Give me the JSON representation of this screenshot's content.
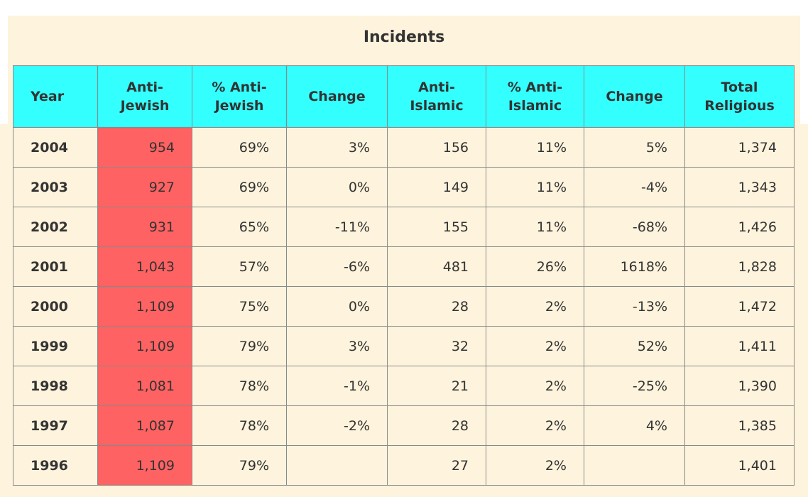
{
  "table": {
    "caption": "Incidents",
    "colors": {
      "header_bg": "#33ffff",
      "highlight_bg": "#ff6262",
      "body_bg": "#fef3dc"
    },
    "columns": [
      [
        "Anti-",
        "Jewish"
      ],
      [
        "% Anti-",
        "Jewish"
      ],
      [
        "Change"
      ],
      [
        "Anti-",
        "Islamic"
      ],
      [
        "% Anti-",
        "Islamic"
      ],
      [
        "Change"
      ],
      [
        "Total",
        "Religious"
      ]
    ],
    "year_label": "Year",
    "rows": [
      {
        "year": "2004",
        "anti_jewish": "954",
        "pct_anti_jewish": "69%",
        "change_jewish": "3%",
        "anti_islamic": "156",
        "pct_anti_islamic": "11%",
        "change_islamic": "5%",
        "total_religious": "1,374"
      },
      {
        "year": "2003",
        "anti_jewish": "927",
        "pct_anti_jewish": "69%",
        "change_jewish": "0%",
        "anti_islamic": "149",
        "pct_anti_islamic": "11%",
        "change_islamic": "-4%",
        "total_religious": "1,343"
      },
      {
        "year": "2002",
        "anti_jewish": "931",
        "pct_anti_jewish": "65%",
        "change_jewish": "-11%",
        "anti_islamic": "155",
        "pct_anti_islamic": "11%",
        "change_islamic": "-68%",
        "total_religious": "1,426"
      },
      {
        "year": "2001",
        "anti_jewish": "1,043",
        "pct_anti_jewish": "57%",
        "change_jewish": "-6%",
        "anti_islamic": "481",
        "pct_anti_islamic": "26%",
        "change_islamic": "1618%",
        "total_religious": "1,828"
      },
      {
        "year": "2000",
        "anti_jewish": "1,109",
        "pct_anti_jewish": "75%",
        "change_jewish": "0%",
        "anti_islamic": "28",
        "pct_anti_islamic": "2%",
        "change_islamic": "-13%",
        "total_religious": "1,472"
      },
      {
        "year": "1999",
        "anti_jewish": "1,109",
        "pct_anti_jewish": "79%",
        "change_jewish": "3%",
        "anti_islamic": "32",
        "pct_anti_islamic": "2%",
        "change_islamic": "52%",
        "total_religious": "1,411"
      },
      {
        "year": "1998",
        "anti_jewish": "1,081",
        "pct_anti_jewish": "78%",
        "change_jewish": "-1%",
        "anti_islamic": "21",
        "pct_anti_islamic": "2%",
        "change_islamic": "-25%",
        "total_religious": "1,390"
      },
      {
        "year": "1997",
        "anti_jewish": "1,087",
        "pct_anti_jewish": "78%",
        "change_jewish": "-2%",
        "anti_islamic": "28",
        "pct_anti_islamic": "2%",
        "change_islamic": "4%",
        "total_religious": "1,385"
      },
      {
        "year": "1996",
        "anti_jewish": "1,109",
        "pct_anti_jewish": "79%",
        "change_jewish": "",
        "anti_islamic": "27",
        "pct_anti_islamic": "2%",
        "change_islamic": "",
        "total_religious": "1,401"
      }
    ]
  }
}
